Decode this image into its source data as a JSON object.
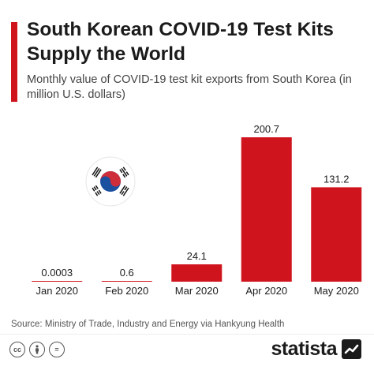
{
  "header": {
    "title": "South Korean COVID-19 Test Kits Supply the World",
    "subtitle": "Monthly value of COVID-19 test kit exports from South Korea (in million U.S. dollars)"
  },
  "chart_data": {
    "type": "bar",
    "title": "South Korean COVID-19 Test Kits Supply the World",
    "subtitle": "Monthly value of COVID-19 test kit exports from South Korea (in million U.S. dollars)",
    "categories": [
      "Jan 2020",
      "Feb 2020",
      "Mar 2020",
      "Apr 2020",
      "May 2020"
    ],
    "values": [
      0.0003,
      0.6,
      24.1,
      200.7,
      131.2
    ],
    "value_labels": [
      "0.0003",
      "0.6",
      "24.1",
      "200.7",
      "131.2"
    ],
    "xlabel": "",
    "ylabel": "",
    "ylim": [
      0,
      200.7
    ],
    "grid": false,
    "legend": "none",
    "bar_color": "#d0141e"
  },
  "decoration": {
    "flag": "south-korea-flag-icon"
  },
  "footer": {
    "source": "Source: Ministry of Trade, Industry and Energy via Hankyung Health",
    "license_icons": [
      "cc",
      "by",
      "="
    ],
    "brand": "statista"
  },
  "colors": {
    "accent": "#d0141e",
    "text": "#1b1b1b",
    "subtext": "#444444"
  }
}
